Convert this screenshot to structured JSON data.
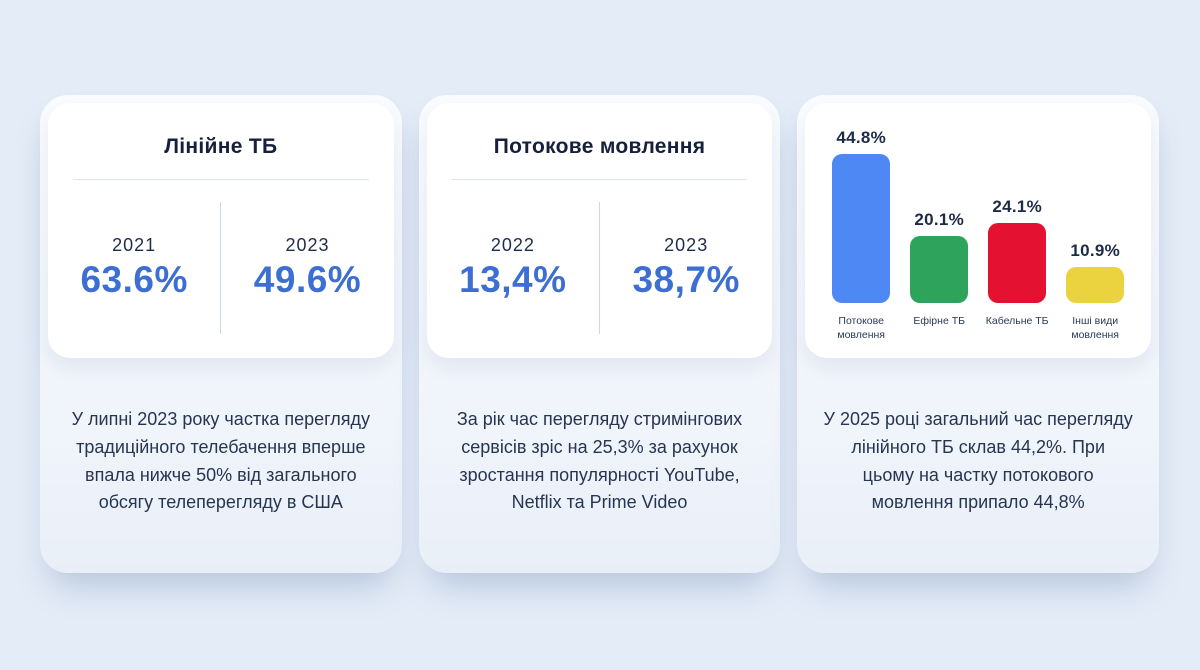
{
  "page": {
    "background_color": "#e4ecf7",
    "panel_background": "#f5f8fd",
    "card_background": "#ffffff",
    "accent_text_color": "#3d6ed2",
    "heading_text_color": "#16203c",
    "body_text_color": "#273550"
  },
  "cards": [
    {
      "title": "Лінійне ТБ",
      "stats": [
        {
          "year": "2021",
          "value": "63.6%"
        },
        {
          "year": "2023",
          "value": "49.6%"
        }
      ],
      "description": "У липні 2023 року частка перегляду традиційного телебачення вперше впала нижче 50% від загального обсягу телеперегляду в США"
    },
    {
      "title": "Потокове мовлення",
      "stats": [
        {
          "year": "2022",
          "value": "13,4%"
        },
        {
          "year": "2023",
          "value": "38,7%"
        }
      ],
      "description": "За рік час перегляду стримінгових сервісів зріс на 25,3% за рахунок зростання популярності YouTube, Netflix та Prime Video"
    },
    {
      "title": "",
      "description": "У 2025 році загальний час перегляду лінійного ТБ склав 44,2%. При цьому на частку потокового мовлення припало 44,8%"
    }
  ],
  "chart_data": [
    {
      "type": "table",
      "title": "Лінійне ТБ",
      "categories": [
        "2021",
        "2023"
      ],
      "values": [
        63.6,
        49.6
      ],
      "value_labels": [
        "63.6%",
        "49.6%"
      ]
    },
    {
      "type": "table",
      "title": "Потокове мовлення",
      "categories": [
        "2022",
        "2023"
      ],
      "values": [
        13.4,
        38.7
      ],
      "value_labels": [
        "13,4%",
        "38,7%"
      ]
    },
    {
      "type": "bar",
      "title": "",
      "xlabel": "",
      "ylabel": "",
      "categories": [
        "Потокове мовлення",
        "Ефірне ТБ",
        "Кабельне ТБ",
        "Інші види мовлення"
      ],
      "values": [
        44.8,
        20.1,
        24.1,
        10.9
      ],
      "value_labels": [
        "44.8%",
        "20.1%",
        "24.1%",
        "10.9%"
      ],
      "colors": [
        "#4d88f4",
        "#2da35c",
        "#e41230",
        "#ead33f"
      ],
      "ylim": [
        0,
        48
      ],
      "grid": false,
      "legend": "none"
    }
  ]
}
